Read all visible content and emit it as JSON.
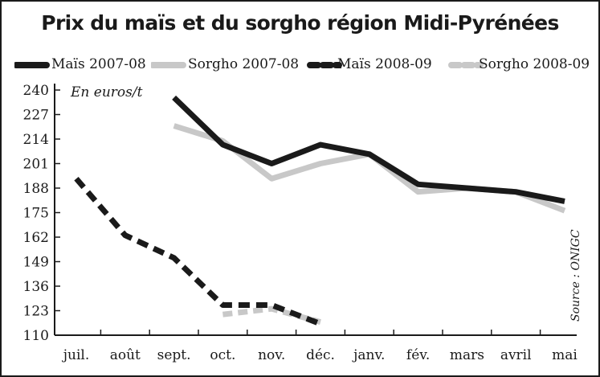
{
  "chart_data": {
    "type": "line",
    "title": "Prix du maïs et du sorgho région Midi-Pyrénées",
    "ylabel": "En euros/t",
    "xlabel": "",
    "source": "Source : ONIGC",
    "categories": [
      "juil.",
      "août",
      "sept.",
      "oct.",
      "nov.",
      "déc.",
      "janv.",
      "fév.",
      "mars",
      "avril",
      "mai"
    ],
    "y_ticks": [
      110,
      123,
      136,
      149,
      162,
      175,
      188,
      201,
      214,
      227,
      240
    ],
    "ylim": [
      110,
      240
    ],
    "grid": false,
    "legend_position": "top",
    "series": [
      {
        "name": "Maïs 2007-08",
        "color": "#1a1a1a",
        "style": "solid",
        "points": [
          {
            "x": "sept.",
            "y": 236
          },
          {
            "x": "oct.",
            "y": 211
          },
          {
            "x": "nov.",
            "y": 201
          },
          {
            "x": "déc.",
            "y": 211
          },
          {
            "x": "janv.",
            "y": 206
          },
          {
            "x": "fév.",
            "y": 190
          },
          {
            "x": "mars",
            "y": 188
          },
          {
            "x": "avril",
            "y": 186
          },
          {
            "x": "mai",
            "y": 181
          }
        ]
      },
      {
        "name": "Sorgho 2007-08",
        "color": "#c8c8c8",
        "style": "solid",
        "points": [
          {
            "x": "sept.",
            "y": 221
          },
          {
            "x": "oct.",
            "y": 213
          },
          {
            "x": "nov.",
            "y": 193
          },
          {
            "x": "déc.",
            "y": 201
          },
          {
            "x": "janv.",
            "y": 206
          },
          {
            "x": "fév.",
            "y": 186
          },
          {
            "x": "mars",
            "y": 188
          },
          {
            "x": "avril",
            "y": 186
          },
          {
            "x": "mai",
            "y": 176
          }
        ]
      },
      {
        "name": "Maïs 2008-09",
        "color": "#1a1a1a",
        "style": "dashed",
        "points": [
          {
            "x": "juil.",
            "y": 193
          },
          {
            "x": "août",
            "y": 163
          },
          {
            "x": "sept.",
            "y": 151
          },
          {
            "x": "oct.",
            "y": 126
          },
          {
            "x": "nov.",
            "y": 126
          },
          {
            "x": "déc.",
            "y": 116
          }
        ]
      },
      {
        "name": "Sorgho 2008-09",
        "color": "#c8c8c8",
        "style": "dashed",
        "points": [
          {
            "x": "oct.",
            "y": 121
          },
          {
            "x": "nov.",
            "y": 124
          },
          {
            "x": "déc.",
            "y": 117
          }
        ]
      }
    ]
  }
}
